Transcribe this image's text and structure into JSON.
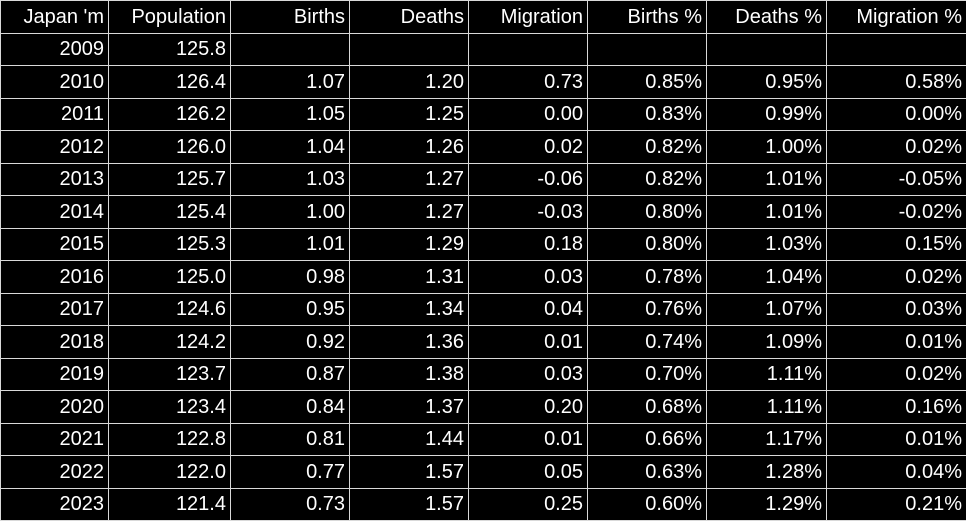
{
  "columns": [
    "Japan 'm",
    "Population",
    "Births",
    "Deaths",
    "Migration",
    "Births %",
    "Deaths %",
    "Migration %"
  ],
  "rows": [
    [
      "2009",
      "125.8",
      "",
      "",
      "",
      "",
      "",
      ""
    ],
    [
      "2010",
      "126.4",
      "1.07",
      "1.20",
      "0.73",
      "0.85%",
      "0.95%",
      "0.58%"
    ],
    [
      "2011",
      "126.2",
      "1.05",
      "1.25",
      "0.00",
      "0.83%",
      "0.99%",
      "0.00%"
    ],
    [
      "2012",
      "126.0",
      "1.04",
      "1.26",
      "0.02",
      "0.82%",
      "1.00%",
      "0.02%"
    ],
    [
      "2013",
      "125.7",
      "1.03",
      "1.27",
      "-0.06",
      "0.82%",
      "1.01%",
      "-0.05%"
    ],
    [
      "2014",
      "125.4",
      "1.00",
      "1.27",
      "-0.03",
      "0.80%",
      "1.01%",
      "-0.02%"
    ],
    [
      "2015",
      "125.3",
      "1.01",
      "1.29",
      "0.18",
      "0.80%",
      "1.03%",
      "0.15%"
    ],
    [
      "2016",
      "125.0",
      "0.98",
      "1.31",
      "0.03",
      "0.78%",
      "1.04%",
      "0.02%"
    ],
    [
      "2017",
      "124.6",
      "0.95",
      "1.34",
      "0.04",
      "0.76%",
      "1.07%",
      "0.03%"
    ],
    [
      "2018",
      "124.2",
      "0.92",
      "1.36",
      "0.01",
      "0.74%",
      "1.09%",
      "0.01%"
    ],
    [
      "2019",
      "123.7",
      "0.87",
      "1.38",
      "0.03",
      "0.70%",
      "1.11%",
      "0.02%"
    ],
    [
      "2020",
      "123.4",
      "0.84",
      "1.37",
      "0.20",
      "0.68%",
      "1.11%",
      "0.16%"
    ],
    [
      "2021",
      "122.8",
      "0.81",
      "1.44",
      "0.01",
      "0.66%",
      "1.17%",
      "0.01%"
    ],
    [
      "2022",
      "122.0",
      "0.77",
      "1.57",
      "0.05",
      "0.63%",
      "1.28%",
      "0.04%"
    ],
    [
      "2023",
      "121.4",
      "0.73",
      "1.57",
      "0.25",
      "0.60%",
      "1.29%",
      "0.21%"
    ]
  ],
  "colors": {
    "background": "#000000",
    "text": "#ffffff",
    "gridline": "#d9d9d9"
  }
}
